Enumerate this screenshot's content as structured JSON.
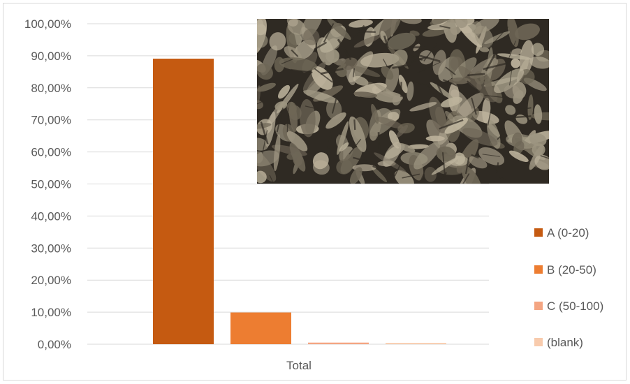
{
  "chart_data": {
    "type": "bar",
    "title": "",
    "xlabel": "",
    "ylabel": "",
    "categories": [
      "Total"
    ],
    "ylim": [
      0,
      1
    ],
    "y_ticks": [
      "0,00%",
      "10,00%",
      "20,00%",
      "30,00%",
      "40,00%",
      "50,00%",
      "60,00%",
      "70,00%",
      "80,00%",
      "90,00%",
      "100,00%"
    ],
    "grid": true,
    "legend_position": "right",
    "series": [
      {
        "name": "A (0-20)",
        "values": [
          0.891
        ],
        "color": "#c55a11"
      },
      {
        "name": "B (20-50)",
        "values": [
          0.099
        ],
        "color": "#ed7d31"
      },
      {
        "name": "C (50-100)",
        "values": [
          0.005
        ],
        "color": "#f4a582"
      },
      {
        "name": "(blank)",
        "values": [
          0.004
        ],
        "color": "#f8cbad"
      }
    ]
  },
  "overlay_photo": {
    "icon": "dried-leaves-photo",
    "colors": [
      "#2f2a23",
      "#6e6656",
      "#9c9480",
      "#bdb39c"
    ]
  }
}
